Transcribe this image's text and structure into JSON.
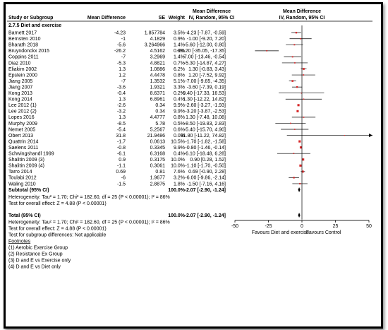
{
  "headers": {
    "study": "Study or Subgroup",
    "md": "Mean Difference",
    "se": "SE",
    "weight": "Weight",
    "ci_title": "Mean Difference",
    "ci_method": "IV, Random, 95% CI",
    "plot_title": "Mean Difference",
    "plot_method": "IV, Random, 95% CI"
  },
  "subgroup_title": "2.7.5 Diet and exercise",
  "studies": [
    {
      "name": "Barnett 2017",
      "md": "-4.23",
      "se": "1.857784",
      "weight": "3.5%",
      "ci": "-4.23 [-7.87, -0.59]",
      "est": -4.23,
      "lo": -7.87,
      "hi": -0.59
    },
    {
      "name": "Bernsten 2010",
      "md": "-1",
      "se": "4.1829",
      "weight": "0.9%",
      "ci": "-1.00 [-9.20, 7.20]",
      "est": -1.0,
      "lo": -9.2,
      "hi": 7.2
    },
    {
      "name": "Bharath 2018",
      "md": "-5.6",
      "se": "3.264966",
      "weight": "1.4%",
      "ci": "-5.60 [-12.00, 0.80]",
      "est": -5.6,
      "lo": -12.0,
      "hi": 0.8
    },
    {
      "name": "Bruyndonckx 2015",
      "md": "-26.2",
      "se": "4.5162",
      "weight": "0.8%",
      "ci": "-26.20 [-35.05, -17.35]",
      "est": -26.2,
      "lo": -35.05,
      "hi": -17.35
    },
    {
      "name": "Coppins 2011",
      "md": "-7",
      "se": "3.2969",
      "weight": "1.4%",
      "ci": "-7.00 [-13.46, -0.54]",
      "est": -7.0,
      "lo": -13.46,
      "hi": -0.54
    },
    {
      "name": "Diaz 2010",
      "md": "-5.3",
      "se": "4.8821",
      "weight": "0.7%",
      "ci": "-5.30 [-14.87, 4.27]",
      "est": -5.3,
      "lo": -14.87,
      "hi": 4.27
    },
    {
      "name": "Eliakim 2002",
      "md": "1.3",
      "se": "1.0886",
      "weight": "6.2%",
      "ci": "1.30 [-0.83, 3.43]",
      "est": 1.3,
      "lo": -0.83,
      "hi": 3.43
    },
    {
      "name": "Epstein 2000",
      "md": "1.2",
      "se": "4.4478",
      "weight": "0.8%",
      "ci": "1.20 [-7.52, 9.92]",
      "est": 1.2,
      "lo": -7.52,
      "hi": 9.92
    },
    {
      "name": "Jiang 2005",
      "md": "-7",
      "se": "1.3532",
      "weight": "5.1%",
      "ci": "-7.00 [-9.65, -4.35]",
      "est": -7.0,
      "lo": -9.65,
      "hi": -4.35
    },
    {
      "name": "Jiang 2007",
      "md": "-3.6",
      "se": "1.9321",
      "weight": "3.3%",
      "ci": "-3.60 [-7.39, 0.19]",
      "est": -3.6,
      "lo": -7.39,
      "hi": 0.19
    },
    {
      "name": "Kong 2013",
      "md": "-0.4",
      "se": "8.6371",
      "weight": "0.2%",
      "ci": "-0.40 [-17.33, 16.53]",
      "est": -0.4,
      "lo": -17.33,
      "hi": 16.53
    },
    {
      "name": "Kong 2014",
      "md": "1.3",
      "se": "6.8961",
      "weight": "0.4%",
      "ci": "1.30 [-12.22, 14.82]",
      "est": 1.3,
      "lo": -12.22,
      "hi": 14.82
    },
    {
      "name": "Lee 2012 (1)",
      "md": "-2.6",
      "se": "0.34",
      "weight": "9.9%",
      "ci": "-2.60 [-3.27, -1.93]",
      "est": -2.6,
      "lo": -3.27,
      "hi": -1.93
    },
    {
      "name": "Lee 2012 (2)",
      "md": "-3.2",
      "se": "0.34",
      "weight": "9.9%",
      "ci": "-3.20 [-3.87, -2.53]",
      "est": -3.2,
      "lo": -3.87,
      "hi": -2.53
    },
    {
      "name": "Lopes 2016",
      "md": "1.3",
      "se": "4.4777",
      "weight": "0.8%",
      "ci": "1.30 [-7.48, 10.08]",
      "est": 1.3,
      "lo": -7.48,
      "hi": 10.08
    },
    {
      "name": "Murphy 2009",
      "md": "-8.5",
      "se": "5.78",
      "weight": "0.5%",
      "ci": "-8.50 [-19.83, 2.83]",
      "est": -8.5,
      "lo": -19.83,
      "hi": 2.83
    },
    {
      "name": "Nemet 2005",
      "md": "-5.4",
      "se": "5.2567",
      "weight": "0.6%",
      "ci": "-5.40 [-15.70, 4.90]",
      "est": -5.4,
      "lo": -15.7,
      "hi": 4.9
    },
    {
      "name": "Obert 2013",
      "md": "31.8",
      "se": "21.9486",
      "weight": "0.0%",
      "ci": "31.80 [-11.22, 74.82]",
      "est": 31.8,
      "lo": -11.22,
      "hi": 74.82
    },
    {
      "name": "Quattrin 2014",
      "md": "-1.7",
      "se": "0.0613",
      "weight": "10.5%",
      "ci": "-1.70 [-1.82, -1.58]",
      "est": -1.7,
      "lo": -1.82,
      "hi": -1.58
    },
    {
      "name": "Saelens 2011",
      "md": "-0.8",
      "se": "0.3345",
      "weight": "9.9%",
      "ci": "-0.80 [-1.46, -0.14]",
      "est": -0.8,
      "lo": -1.46,
      "hi": -0.14
    },
    {
      "name": "Schwingshandl 1999",
      "md": "-6.1",
      "se": "6.3168",
      "weight": "0.4%",
      "ci": "-6.10 [-18.48, 6.28]",
      "est": -6.1,
      "lo": -18.48,
      "hi": 6.28
    },
    {
      "name": "Shalitin 2009 (3)",
      "md": "0.9",
      "se": "0.3175",
      "weight": "10.0%",
      "ci": "0.90 [0.28, 1.52]",
      "est": 0.9,
      "lo": 0.28,
      "hi": 1.52
    },
    {
      "name": "Shalitin 2009 (4)",
      "md": "-1.1",
      "se": "0.3061",
      "weight": "10.0%",
      "ci": "-1.10 [-1.70, -0.50]",
      "est": -1.1,
      "lo": -1.7,
      "hi": -0.5
    },
    {
      "name": "Tarro 2014",
      "md": "0.69",
      "se": "0.81",
      "weight": "7.6%",
      "ci": "0.69 [-0.90, 2.28]",
      "est": 0.69,
      "lo": -0.9,
      "hi": 2.28
    },
    {
      "name": "Toulabi 2012",
      "md": "-6",
      "se": "1.9677",
      "weight": "3.2%",
      "ci": "-6.00 [-9.86, -2.14]",
      "est": -6.0,
      "lo": -9.86,
      "hi": -2.14
    },
    {
      "name": "Waling 2010",
      "md": "-1.5",
      "se": "2.8875",
      "weight": "1.8%",
      "ci": "-1.50 [-7.16, 4.16]",
      "est": -1.5,
      "lo": -7.16,
      "hi": 4.16
    }
  ],
  "subtotal": {
    "label": "Subtotal (95% CI)",
    "weight": "100.0%",
    "ci": "-2.07 [-2.90, -1.24]",
    "est": -2.07,
    "lo": -2.9,
    "hi": -1.24
  },
  "subgroup_het": "Heterogeneity: Tau² = 1.70; Chi² = 182.60, df = 25 (P < 0.00001); I² = 86%",
  "subgroup_effect": "Test for overall effect: Z = 4.88 (P < 0.00001)",
  "total": {
    "label": "Total (95% CI)",
    "weight": "100.0%",
    "ci": "-2.07 [-2.90, -1.24]",
    "est": -2.07,
    "lo": -2.9,
    "hi": -1.24
  },
  "total_het": "Heterogeneity: Tau² = 1.70; Chi² = 182.60, df = 25 (P < 0.00001); I² = 86%",
  "total_effect": "Test for overall effect: Z = 4.88 (P < 0.00001)",
  "subgroup_diff": "Test for subgroup differences: Not applicable",
  "footnotes_title": "Footnotes",
  "footnotes": [
    "(1) Aerobic Exercise Group",
    "(2) Resistance Ex Group",
    "(3) D and E vs Exercise only",
    "(4) D and E vs Diet only"
  ],
  "colors": {
    "square": "#d62728",
    "diamond": "#000000",
    "line": "#000000"
  },
  "chart_data": {
    "type": "forest",
    "xlim": [
      -50,
      50
    ],
    "ticks": [
      -50,
      -25,
      0,
      25,
      50
    ],
    "tick_labels": [
      "-50",
      "-25",
      "0",
      "25",
      "50"
    ],
    "favours_left": "Favours Diet and exercise",
    "favours_right": "Favours Control"
  }
}
